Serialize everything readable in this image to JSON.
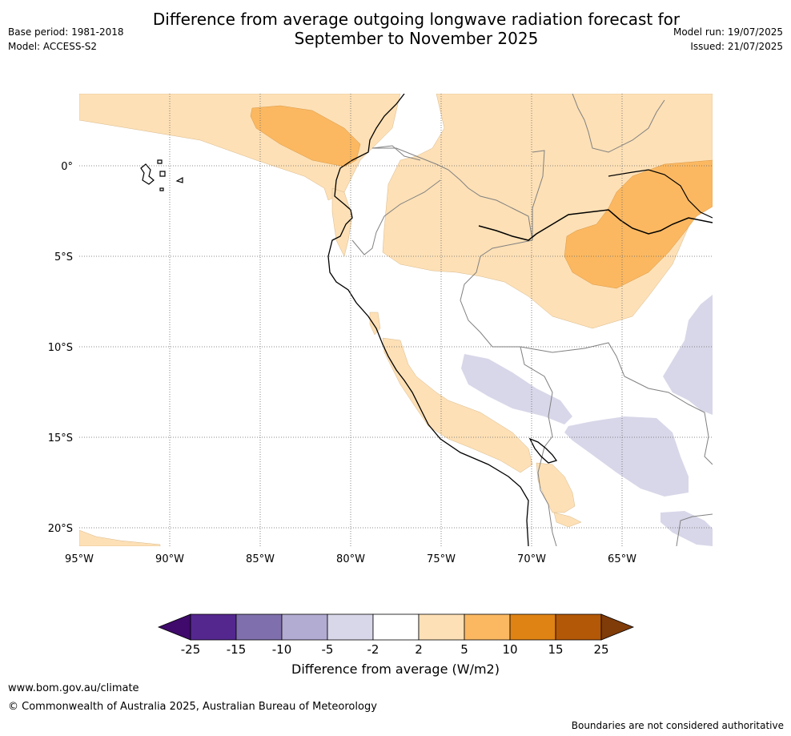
{
  "header": {
    "title_line1": "Difference from average outgoing longwave radiation forecast for",
    "title_line2": "September to November 2025",
    "base_period": "Base period: 1981-2018",
    "model": "Model: ACCESS-S2",
    "model_run": "Model run: 19/07/2025",
    "issued": "Issued: 21/07/2025"
  },
  "map": {
    "lat_labels": [
      "0°",
      "5°S",
      "10°S",
      "15°S",
      "20°S"
    ],
    "lon_labels": [
      "95°W",
      "90°W",
      "85°W",
      "80°W",
      "75°W",
      "70°W",
      "65°W"
    ],
    "colors": {
      "light_orange": "#fde0b6",
      "mid_orange": "#fbb861",
      "light_purple": "#d8d7e9",
      "coast": "#000000",
      "borders": "#808080",
      "grid": "#666666"
    }
  },
  "colorbar": {
    "ticks": [
      "-25",
      "-15",
      "-10",
      "-5",
      "-2",
      "2",
      "5",
      "10",
      "15",
      "25"
    ],
    "colors": [
      "#3f0a6b",
      "#54278f",
      "#7f70ad",
      "#b2abd2",
      "#d8d7e9",
      "#ffffff",
      "#fde0b6",
      "#fbb861",
      "#df8314",
      "#b35806",
      "#7f3b08"
    ],
    "label": "Difference from average (W/m2)"
  },
  "footer": {
    "url": "www.bom.gov.au/climate",
    "copyright": "© Commonwealth of Australia 2025, Australian Bureau of Meteorology",
    "disclaimer": "Boundaries are not considered authoritative"
  }
}
